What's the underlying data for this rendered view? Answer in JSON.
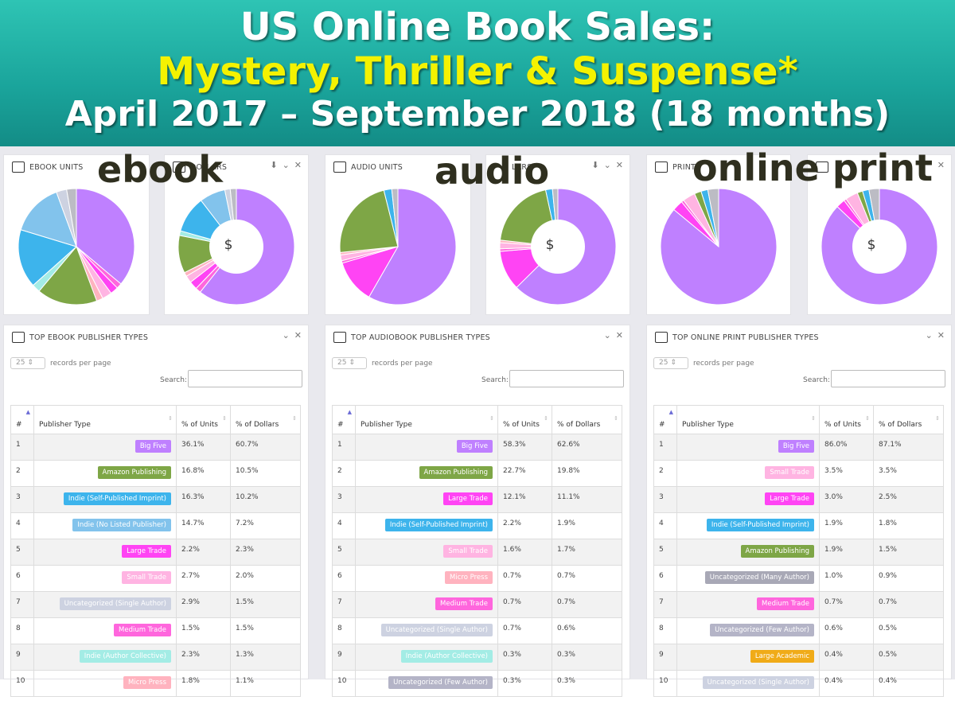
{
  "banner": {
    "line1": "US Online Book Sales:",
    "line2": "Mystery, Thriller & Suspense*",
    "line3": "April 2017 – September 2018 (18 months)"
  },
  "overlays": {
    "ebook": "ebook",
    "audio": "audio",
    "print": "online print"
  },
  "colors": {
    "Big Five": "#bf80ff",
    "Amazon Publishing": "#7ea646",
    "Indie (Self-Published Imprint)": "#3db4ec",
    "Indie (No Listed Publisher)": "#82c3ec",
    "Large Trade": "#ff44f4",
    "Small Trade": "#ffb4e2",
    "Uncategorized (Single Author)": "#cdd2e1",
    "Medium Trade": "#ff66dd",
    "Indie (Author Collective)": "#a3ece5",
    "Micro Press": "#ffb3bf",
    "Uncategorized (Few Author)": "#b4b4c7",
    "Uncategorized (Many Author)": "#a8a8b6",
    "Large Academic": "#f0ab18"
  },
  "chart_cards": {
    "ebook_units": "EBOOK UNITS",
    "ebook_dollars": "DOLLARS",
    "audio_units": "AUDIO UNITS",
    "audio_dollars": "LARS",
    "print_units": "PRINT",
    "print_dollars": ""
  },
  "dollar_sign": "$",
  "tables": {
    "ebook": {
      "title": "TOP EBOOK PUBLISHER TYPES"
    },
    "audio": {
      "title": "TOP AUDIOBOOK PUBLISHER TYPES"
    },
    "print": {
      "title": "TOP ONLINE PRINT PUBLISHER TYPES"
    },
    "records_value": "25",
    "records_label": "records per page",
    "search_label": "Search:",
    "col_num": "#",
    "col_type": "Publisher Type",
    "col_units": "% of Units",
    "col_dollars": "% of Dollars"
  },
  "chart_data": [
    {
      "type": "table",
      "title": "TOP EBOOK PUBLISHER TYPES",
      "columns": [
        "#",
        "Publisher Type",
        "% of Units",
        "% of Dollars"
      ],
      "rows": [
        [
          "1",
          "Big Five",
          "36.1%",
          "60.7%"
        ],
        [
          "2",
          "Amazon Publishing",
          "16.8%",
          "10.5%"
        ],
        [
          "3",
          "Indie (Self-Published Imprint)",
          "16.3%",
          "10.2%"
        ],
        [
          "4",
          "Indie (No Listed Publisher)",
          "14.7%",
          "7.2%"
        ],
        [
          "5",
          "Large Trade",
          "2.2%",
          "2.3%"
        ],
        [
          "6",
          "Small Trade",
          "2.7%",
          "2.0%"
        ],
        [
          "7",
          "Uncategorized (Single Author)",
          "2.9%",
          "1.5%"
        ],
        [
          "8",
          "Medium Trade",
          "1.5%",
          "1.5%"
        ],
        [
          "9",
          "Indie (Author Collective)",
          "2.3%",
          "1.3%"
        ],
        [
          "10",
          "Micro Press",
          "1.8%",
          "1.1%"
        ]
      ]
    },
    {
      "type": "table",
      "title": "TOP AUDIOBOOK PUBLISHER TYPES",
      "columns": [
        "#",
        "Publisher Type",
        "% of Units",
        "% of Dollars"
      ],
      "rows": [
        [
          "1",
          "Big Five",
          "58.3%",
          "62.6%"
        ],
        [
          "2",
          "Amazon Publishing",
          "22.7%",
          "19.8%"
        ],
        [
          "3",
          "Large Trade",
          "12.1%",
          "11.1%"
        ],
        [
          "4",
          "Indie (Self-Published Imprint)",
          "2.2%",
          "1.9%"
        ],
        [
          "5",
          "Small Trade",
          "1.6%",
          "1.7%"
        ],
        [
          "6",
          "Micro Press",
          "0.7%",
          "0.7%"
        ],
        [
          "7",
          "Medium Trade",
          "0.7%",
          "0.7%"
        ],
        [
          "8",
          "Uncategorized (Single Author)",
          "0.7%",
          "0.6%"
        ],
        [
          "9",
          "Indie (Author Collective)",
          "0.3%",
          "0.3%"
        ],
        [
          "10",
          "Uncategorized (Few Author)",
          "0.3%",
          "0.3%"
        ]
      ]
    },
    {
      "type": "table",
      "title": "TOP ONLINE PRINT PUBLISHER TYPES",
      "columns": [
        "#",
        "Publisher Type",
        "% of Units",
        "% of Dollars"
      ],
      "rows": [
        [
          "1",
          "Big Five",
          "86.0%",
          "87.1%"
        ],
        [
          "2",
          "Small Trade",
          "3.5%",
          "3.5%"
        ],
        [
          "3",
          "Large Trade",
          "3.0%",
          "2.5%"
        ],
        [
          "4",
          "Indie (Self-Published Imprint)",
          "1.9%",
          "1.8%"
        ],
        [
          "5",
          "Amazon Publishing",
          "1.9%",
          "1.5%"
        ],
        [
          "6",
          "Uncategorized (Many Author)",
          "1.0%",
          "0.9%"
        ],
        [
          "7",
          "Medium Trade",
          "0.7%",
          "0.7%"
        ],
        [
          "8",
          "Uncategorized (Few Author)",
          "0.6%",
          "0.5%"
        ],
        [
          "9",
          "Large Academic",
          "0.4%",
          "0.5%"
        ],
        [
          "10",
          "Uncategorized (Single Author)",
          "0.4%",
          "0.4%"
        ]
      ]
    },
    {
      "type": "pie",
      "title": "EBOOK UNITS",
      "labels": [
        "Big Five",
        "Medium Trade",
        "Large Trade",
        "Small Trade",
        "Micro Press",
        "Amazon Publishing",
        "Indie (Author Collective)",
        "Indie (Self-Published Imprint)",
        "Indie (No Listed Publisher)",
        "Uncategorized (Single Author)",
        "Other"
      ],
      "values": [
        36.1,
        1.5,
        2.2,
        2.7,
        1.8,
        16.8,
        2.3,
        16.3,
        14.7,
        2.9,
        2.7
      ]
    },
    {
      "type": "pie",
      "title": "DOLLARS",
      "donut": true,
      "labels": [
        "Big Five",
        "Medium Trade",
        "Large Trade",
        "Small Trade",
        "Micro Press",
        "Amazon Publishing",
        "Indie (Author Collective)",
        "Indie (Self-Published Imprint)",
        "Indie (No Listed Publisher)",
        "Uncategorized (Single Author)",
        "Other"
      ],
      "values": [
        60.7,
        1.5,
        2.3,
        2.0,
        1.1,
        10.5,
        1.3,
        10.2,
        7.2,
        1.5,
        1.7
      ]
    },
    {
      "type": "pie",
      "title": "AUDIO UNITS",
      "labels": [
        "Big Five",
        "Large Trade",
        "Medium Trade",
        "Small Trade",
        "Micro Press",
        "Amazon Publishing",
        "Indie (Self-Published Imprint)",
        "Other"
      ],
      "values": [
        58.3,
        12.1,
        0.7,
        1.6,
        0.7,
        22.7,
        2.2,
        1.7
      ]
    },
    {
      "type": "pie",
      "title": "LARS",
      "donut": true,
      "labels": [
        "Big Five",
        "Large Trade",
        "Medium Trade",
        "Small Trade",
        "Micro Press",
        "Amazon Publishing",
        "Indie (Self-Published Imprint)",
        "Other"
      ],
      "values": [
        62.6,
        11.1,
        0.7,
        1.7,
        0.7,
        19.8,
        1.9,
        1.5
      ]
    },
    {
      "type": "pie",
      "title": "PRINT",
      "labels": [
        "Big Five",
        "Large Trade",
        "Medium Trade",
        "Small Trade",
        "Amazon Publishing",
        "Indie (Self-Published Imprint)",
        "Other"
      ],
      "values": [
        86.0,
        3.0,
        0.7,
        3.5,
        1.9,
        1.9,
        3.0
      ]
    },
    {
      "type": "pie",
      "title": "",
      "donut": true,
      "labels": [
        "Big Five",
        "Large Trade",
        "Medium Trade",
        "Small Trade",
        "Amazon Publishing",
        "Indie (Self-Published Imprint)",
        "Other"
      ],
      "values": [
        87.1,
        2.5,
        0.7,
        3.5,
        1.5,
        1.8,
        2.9
      ]
    }
  ]
}
